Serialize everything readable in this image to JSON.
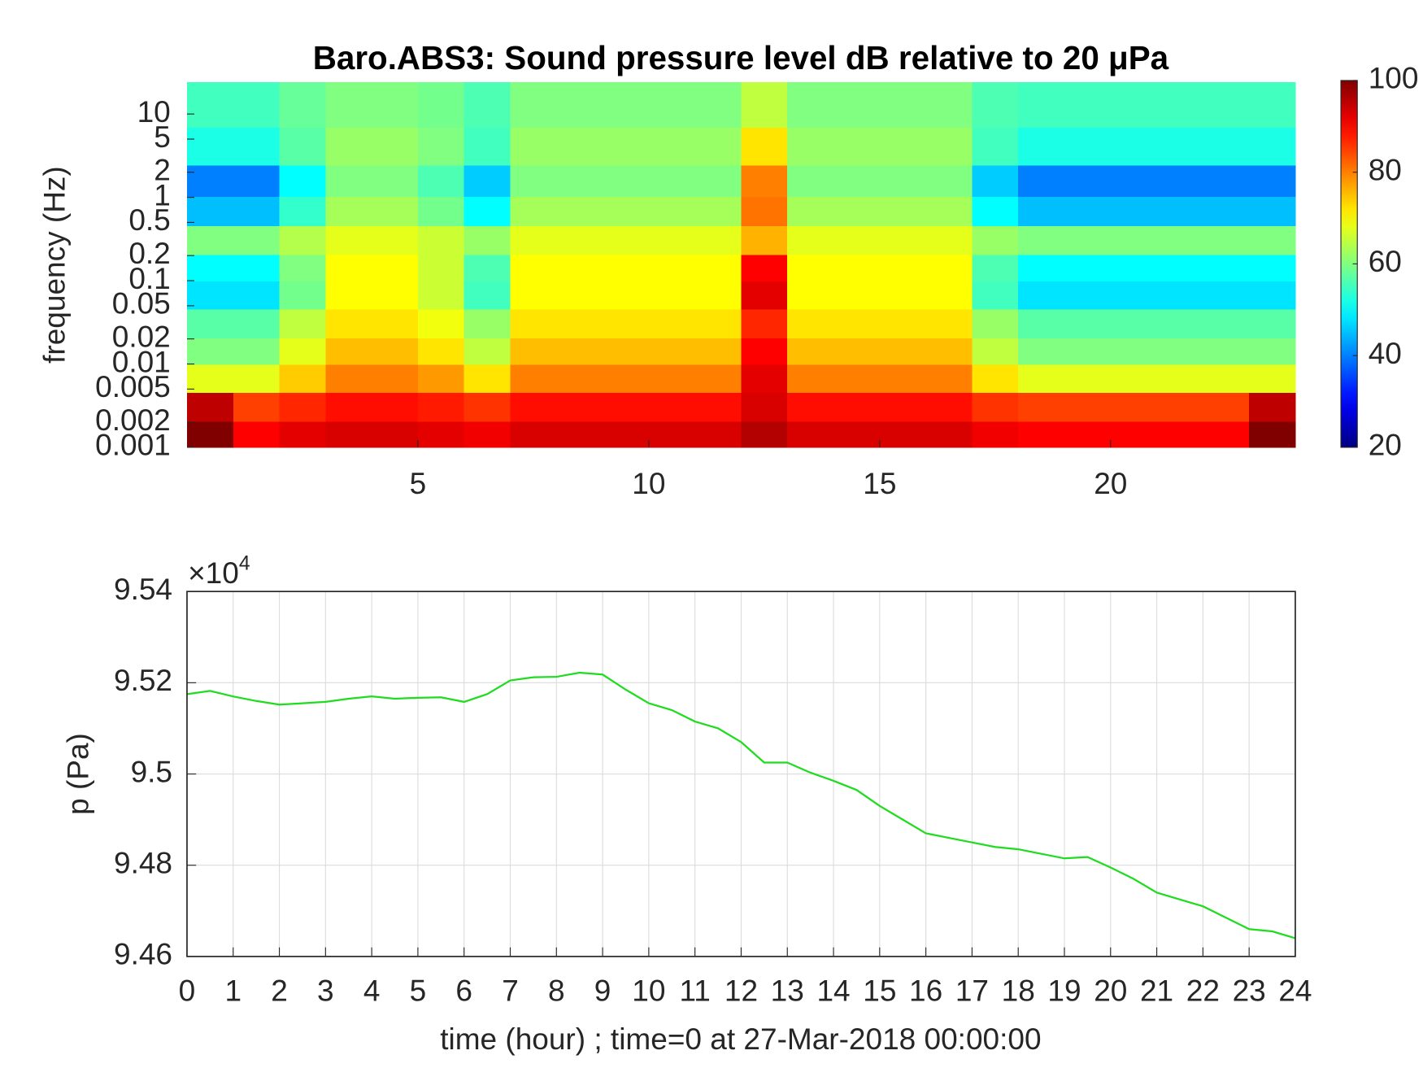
{
  "chart_data": [
    {
      "type": "heatmap",
      "title": "Baro.ABS3: Sound pressure level dB relative to 20 μPa",
      "y_label": "frequency (Hz)",
      "x": [
        0.5,
        1.5,
        2.5,
        3.5,
        4.5,
        5.5,
        6.5,
        7.5,
        8.5,
        9.5,
        10.5,
        11.5,
        12.5,
        13.5,
        14.5,
        15.5,
        16.5,
        17.5,
        18.5,
        19.5,
        20.5,
        21.5,
        22.5,
        23.5
      ],
      "y": [
        0.0014,
        0.003,
        0.007,
        0.014,
        0.03,
        0.07,
        0.14,
        0.3,
        0.7,
        1.5,
        4,
        12
      ],
      "values": [
        [
          100,
          90,
          92,
          93,
          93,
          92,
          91,
          93,
          93,
          93,
          93,
          93,
          96,
          93,
          93,
          93,
          93,
          91,
          90,
          90,
          90,
          90,
          90,
          100
        ],
        [
          95,
          85,
          87,
          89,
          89,
          88,
          86,
          89,
          89,
          89,
          89,
          89,
          93,
          89,
          89,
          89,
          89,
          86,
          85,
          85,
          85,
          85,
          85,
          95
        ],
        [
          68,
          68,
          74,
          80,
          80,
          78,
          72,
          80,
          80,
          80,
          80,
          80,
          92,
          80,
          80,
          80,
          80,
          72,
          68,
          68,
          68,
          68,
          68,
          68
        ],
        [
          60,
          60,
          68,
          75,
          75,
          72,
          65,
          75,
          75,
          75,
          75,
          75,
          90,
          75,
          75,
          75,
          75,
          65,
          60,
          60,
          60,
          60,
          60,
          60
        ],
        [
          57,
          57,
          65,
          72,
          72,
          69,
          62,
          72,
          72,
          72,
          72,
          72,
          87,
          72,
          72,
          72,
          72,
          62,
          57,
          57,
          57,
          57,
          57,
          57
        ],
        [
          48,
          48,
          59,
          70,
          70,
          66,
          55,
          70,
          70,
          70,
          70,
          70,
          92,
          70,
          70,
          70,
          70,
          55,
          48,
          48,
          48,
          48,
          48,
          48
        ],
        [
          50,
          50,
          60,
          70,
          70,
          66,
          56,
          70,
          70,
          70,
          70,
          70,
          90,
          70,
          70,
          70,
          70,
          56,
          50,
          50,
          50,
          50,
          50,
          50
        ],
        [
          60,
          60,
          64,
          68,
          68,
          66,
          62,
          68,
          68,
          68,
          68,
          68,
          76,
          68,
          68,
          68,
          68,
          62,
          60,
          60,
          60,
          60,
          60,
          60
        ],
        [
          45,
          45,
          54,
          63,
          63,
          59,
          50,
          63,
          63,
          63,
          63,
          63,
          81,
          63,
          63,
          63,
          63,
          50,
          45,
          45,
          45,
          45,
          45,
          45
        ],
        [
          40,
          40,
          50,
          60,
          60,
          56,
          46,
          60,
          60,
          60,
          60,
          60,
          80,
          60,
          60,
          60,
          60,
          46,
          40,
          40,
          40,
          40,
          40,
          40
        ],
        [
          52,
          52,
          57,
          62,
          62,
          60,
          55,
          62,
          62,
          62,
          62,
          62,
          72,
          62,
          62,
          62,
          62,
          55,
          52,
          52,
          52,
          52,
          52,
          52
        ],
        [
          55,
          55,
          58,
          60,
          60,
          59,
          56,
          60,
          60,
          60,
          60,
          60,
          65,
          60,
          60,
          60,
          60,
          56,
          55,
          55,
          55,
          55,
          55,
          55
        ]
      ],
      "xlim": [
        0,
        24
      ],
      "xticks": [
        5,
        10,
        15,
        20
      ],
      "ylim": [
        0.001,
        24
      ],
      "yscale": "log",
      "yticks": [
        0.001,
        0.002,
        0.005,
        0.01,
        0.02,
        0.05,
        0.1,
        0.2,
        0.5,
        1,
        2,
        5,
        10
      ],
      "colormap": "jet",
      "clim": [
        20,
        100
      ],
      "cticks": [
        20,
        40,
        60,
        80,
        100
      ]
    },
    {
      "type": "line",
      "x_label": "time (hour) ; time=0 at 27-Mar-2018 00:00:00",
      "y_label": "p (Pa)",
      "y_multiplier": {
        "base": "×10",
        "exponent": "4"
      },
      "color": "#1fdc1f",
      "x": [
        0,
        0.5,
        1,
        1.5,
        2,
        2.5,
        3,
        3.5,
        4,
        4.5,
        5,
        5.5,
        6,
        6.5,
        7,
        7.5,
        8,
        8.5,
        9,
        9.5,
        10,
        10.5,
        11,
        11.5,
        12,
        12.5,
        13,
        13.5,
        14,
        14.5,
        15,
        15.5,
        16,
        16.5,
        17,
        17.5,
        18,
        18.5,
        19,
        19.5,
        20,
        20.5,
        21,
        21.5,
        22,
        22.5,
        23,
        23.5,
        24
      ],
      "values": [
        95175,
        95182,
        95170,
        95160,
        95152,
        95155,
        95158,
        95165,
        95170,
        95165,
        95167,
        95168,
        95158,
        95175,
        95205,
        95212,
        95213,
        95222,
        95218,
        95185,
        95155,
        95140,
        95115,
        95100,
        95070,
        95025,
        95025,
        95003,
        94985,
        94965,
        94930,
        94900,
        94870,
        94860,
        94850,
        94840,
        94835,
        94825,
        94815,
        94818,
        94795,
        94770,
        94740,
        94725,
        94710,
        94685,
        94660,
        94655,
        94640
      ],
      "xlim": [
        0,
        24
      ],
      "xticks": [
        0,
        1,
        2,
        3,
        4,
        5,
        6,
        7,
        8,
        9,
        10,
        11,
        12,
        13,
        14,
        15,
        16,
        17,
        18,
        19,
        20,
        21,
        22,
        23,
        24
      ],
      "ylim": [
        94600,
        95400
      ],
      "yticks": [
        {
          "value": 94600,
          "label": "9.46"
        },
        {
          "value": 94800,
          "label": "9.48"
        },
        {
          "value": 95000,
          "label": "9.5"
        },
        {
          "value": 95200,
          "label": "9.52"
        },
        {
          "value": 95400,
          "label": "9.54"
        }
      ],
      "grid": true
    }
  ]
}
